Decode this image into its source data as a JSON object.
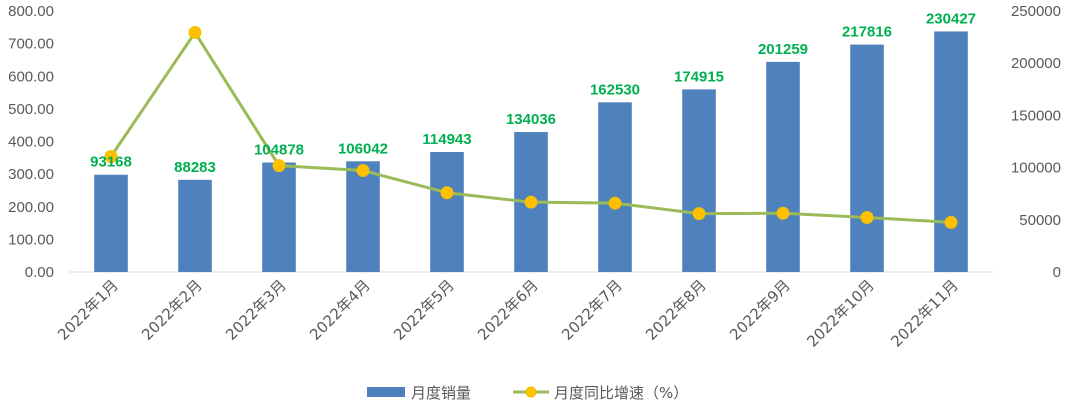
{
  "chart_data": {
    "type": "bar",
    "categories": [
      "2022年1月",
      "2022年2月",
      "2022年3月",
      "2022年4月",
      "2022年5月",
      "2022年6月",
      "2022年7月",
      "2022年8月",
      "2022年9月",
      "2022年10月",
      "2022年11月"
    ],
    "series": [
      {
        "name": "月度销量",
        "type": "bar",
        "axis": "right",
        "color": "#4F81BD",
        "values": [
          93168,
          88283,
          104878,
          106042,
          114943,
          134036,
          162530,
          174915,
          201259,
          217816,
          230427
        ],
        "data_labels": [
          "93168",
          "88283",
          "104878",
          "106042",
          "114943",
          "134036",
          "162530",
          "174915",
          "201259",
          "217816",
          "230427"
        ]
      },
      {
        "name": "月度同比增速（%）",
        "type": "line",
        "axis": "left",
        "color": "#9BBB59",
        "marker_color": "#FFC000",
        "values": [
          354,
          734,
          326,
          311,
          243,
          214,
          211,
          179,
          180,
          167,
          152
        ]
      }
    ],
    "left_axis": {
      "min": 0,
      "max": 800,
      "step": 100,
      "tick_labels": [
        "0.00",
        "100.00",
        "200.00",
        "300.00",
        "400.00",
        "500.00",
        "600.00",
        "700.00",
        "800.00"
      ]
    },
    "right_axis": {
      "min": 0,
      "max": 250000,
      "step": 50000,
      "tick_labels": [
        "0",
        "50000",
        "100000",
        "150000",
        "200000",
        "250000"
      ]
    },
    "data_label_color": "#00B050",
    "grid": false,
    "legend_position": "bottom"
  }
}
